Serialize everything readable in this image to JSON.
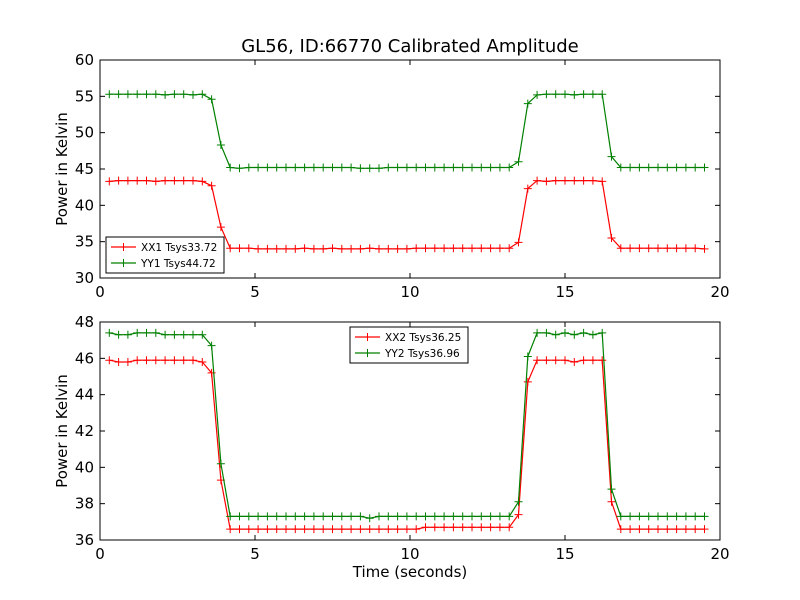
{
  "chart_data": [
    {
      "type": "line",
      "title": "GL56, ID:66770 Calibrated Amplitude",
      "xlabel": "",
      "ylabel": "Power in Kelvin",
      "xlim": [
        0,
        20
      ],
      "ylim": [
        30,
        60
      ],
      "xticks": [
        0,
        5,
        10,
        15,
        20
      ],
      "yticks": [
        30,
        35,
        40,
        45,
        50,
        55,
        60
      ],
      "legend_position": "lower-left",
      "x": [
        0.3,
        0.6,
        0.9,
        1.2,
        1.5,
        1.8,
        2.1,
        2.4,
        2.7,
        3.0,
        3.3,
        3.6,
        3.9,
        4.2,
        4.5,
        4.8,
        5.1,
        5.4,
        5.7,
        6.0,
        6.3,
        6.6,
        6.9,
        7.2,
        7.5,
        7.8,
        8.1,
        8.4,
        8.7,
        9.0,
        9.3,
        9.6,
        9.9,
        10.2,
        10.5,
        10.8,
        11.1,
        11.4,
        11.7,
        12.0,
        12.3,
        12.6,
        12.9,
        13.2,
        13.5,
        13.8,
        14.1,
        14.4,
        14.7,
        15.0,
        15.3,
        15.6,
        15.9,
        16.2,
        16.5,
        16.8,
        17.1,
        17.4,
        17.7,
        18.0,
        18.3,
        18.6,
        18.9,
        19.2,
        19.5
      ],
      "series": [
        {
          "name": "XX1 Tsys33.72",
          "color": "#ff0000",
          "values": [
            43.3,
            43.4,
            43.4,
            43.4,
            43.4,
            43.3,
            43.4,
            43.4,
            43.4,
            43.4,
            43.3,
            42.7,
            37.0,
            34.1,
            34.1,
            34.1,
            34.0,
            34.0,
            34.0,
            34.0,
            34.0,
            34.1,
            34.0,
            34.0,
            34.1,
            34.0,
            34.0,
            34.0,
            34.1,
            34.0,
            34.0,
            34.0,
            34.0,
            34.1,
            34.1,
            34.1,
            34.1,
            34.1,
            34.1,
            34.1,
            34.1,
            34.1,
            34.1,
            34.1,
            34.9,
            42.3,
            43.4,
            43.3,
            43.4,
            43.4,
            43.4,
            43.4,
            43.4,
            43.3,
            35.5,
            34.1,
            34.1,
            34.1,
            34.1,
            34.1,
            34.1,
            34.1,
            34.1,
            34.1,
            34.0
          ]
        },
        {
          "name": "YY1 Tsys44.72",
          "color": "#008000",
          "values": [
            55.3,
            55.3,
            55.3,
            55.3,
            55.3,
            55.3,
            55.2,
            55.3,
            55.3,
            55.2,
            55.3,
            54.6,
            48.3,
            45.2,
            45.1,
            45.2,
            45.2,
            45.2,
            45.2,
            45.2,
            45.2,
            45.2,
            45.2,
            45.2,
            45.2,
            45.2,
            45.2,
            45.1,
            45.1,
            45.1,
            45.2,
            45.2,
            45.2,
            45.2,
            45.2,
            45.2,
            45.2,
            45.2,
            45.2,
            45.2,
            45.2,
            45.2,
            45.2,
            45.2,
            46.0,
            54.0,
            55.2,
            55.3,
            55.3,
            55.3,
            55.2,
            55.3,
            55.3,
            55.3,
            46.7,
            45.2,
            45.2,
            45.2,
            45.2,
            45.2,
            45.2,
            45.2,
            45.2,
            45.2,
            45.2
          ]
        }
      ]
    },
    {
      "type": "line",
      "title": "",
      "xlabel": "Time (seconds)",
      "ylabel": "Power in Kelvin",
      "xlim": [
        0,
        20
      ],
      "ylim": [
        36,
        48
      ],
      "xticks": [
        0,
        5,
        10,
        15,
        20
      ],
      "yticks": [
        36,
        38,
        40,
        42,
        44,
        46,
        48
      ],
      "legend_position": "top-center",
      "x": [
        0.3,
        0.6,
        0.9,
        1.2,
        1.5,
        1.8,
        2.1,
        2.4,
        2.7,
        3.0,
        3.3,
        3.6,
        3.9,
        4.2,
        4.5,
        4.8,
        5.1,
        5.4,
        5.7,
        6.0,
        6.3,
        6.6,
        6.9,
        7.2,
        7.5,
        7.8,
        8.1,
        8.4,
        8.7,
        9.0,
        9.3,
        9.6,
        9.9,
        10.2,
        10.5,
        10.8,
        11.1,
        11.4,
        11.7,
        12.0,
        12.3,
        12.6,
        12.9,
        13.2,
        13.5,
        13.8,
        14.1,
        14.4,
        14.7,
        15.0,
        15.3,
        15.6,
        15.9,
        16.2,
        16.5,
        16.8,
        17.1,
        17.4,
        17.7,
        18.0,
        18.3,
        18.6,
        18.9,
        19.2,
        19.5
      ],
      "series": [
        {
          "name": "XX2 Tsys36.25",
          "color": "#ff0000",
          "values": [
            45.9,
            45.8,
            45.8,
            45.9,
            45.9,
            45.9,
            45.9,
            45.9,
            45.9,
            45.9,
            45.8,
            45.2,
            39.3,
            36.6,
            36.6,
            36.6,
            36.6,
            36.6,
            36.6,
            36.6,
            36.6,
            36.6,
            36.6,
            36.6,
            36.6,
            36.6,
            36.6,
            36.6,
            36.6,
            36.6,
            36.6,
            36.6,
            36.6,
            36.6,
            36.7,
            36.7,
            36.7,
            36.7,
            36.7,
            36.7,
            36.7,
            36.7,
            36.7,
            36.7,
            37.4,
            44.7,
            45.9,
            45.9,
            45.9,
            45.9,
            45.8,
            45.9,
            45.9,
            45.9,
            38.1,
            36.6,
            36.6,
            36.6,
            36.6,
            36.6,
            36.6,
            36.6,
            36.6,
            36.6,
            36.6
          ]
        },
        {
          "name": "YY2 Tsys36.96",
          "color": "#008000",
          "values": [
            47.4,
            47.3,
            47.3,
            47.4,
            47.4,
            47.4,
            47.3,
            47.3,
            47.3,
            47.3,
            47.3,
            46.7,
            40.2,
            37.3,
            37.3,
            37.3,
            37.3,
            37.3,
            37.3,
            37.3,
            37.3,
            37.3,
            37.3,
            37.3,
            37.3,
            37.3,
            37.3,
            37.3,
            37.2,
            37.3,
            37.3,
            37.3,
            37.3,
            37.3,
            37.3,
            37.3,
            37.3,
            37.3,
            37.3,
            37.3,
            37.3,
            37.3,
            37.3,
            37.3,
            38.1,
            46.1,
            47.4,
            47.4,
            47.3,
            47.4,
            47.3,
            47.4,
            47.3,
            47.4,
            38.8,
            37.3,
            37.3,
            37.3,
            37.3,
            37.3,
            37.3,
            37.3,
            37.3,
            37.3,
            37.3
          ]
        }
      ]
    }
  ]
}
